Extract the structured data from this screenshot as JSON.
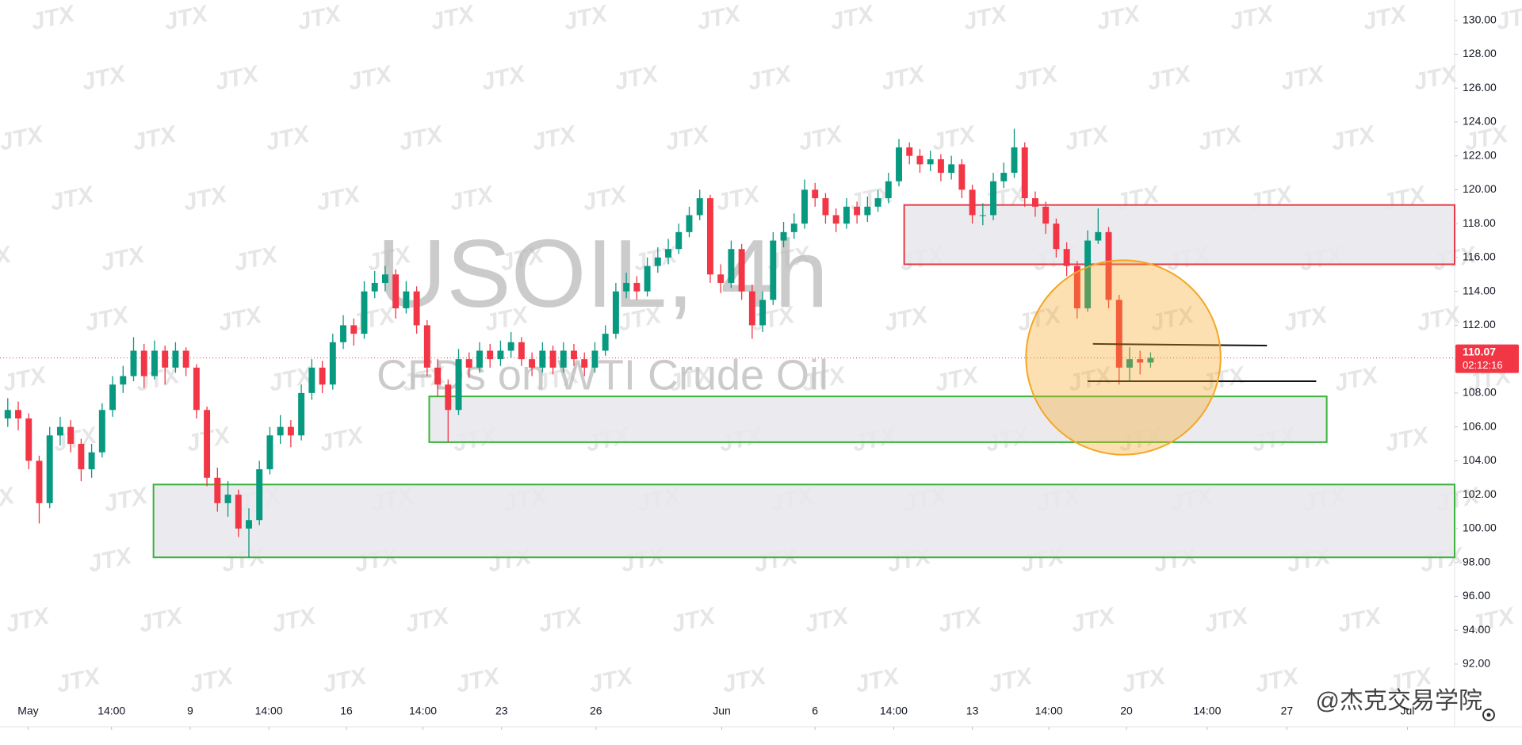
{
  "chart_data": {
    "type": "candlestick",
    "title": "USOIL, 4h",
    "subtitle": "CFDs on WTI Crude Oil",
    "watermark": "JTX",
    "credit": "@杰克交易学院",
    "last_price": {
      "value": 110.07,
      "label": "110.07"
    },
    "countdown": "02:12:16",
    "up_color": "#089981",
    "down_color": "#f23645",
    "grid": false,
    "ylim": [
      88.3,
      131.2
    ],
    "yticks": [
      {
        "value": 92,
        "label": "92.00"
      },
      {
        "value": 94,
        "label": "94.00"
      },
      {
        "value": 96,
        "label": "96.00"
      },
      {
        "value": 98,
        "label": "98.00"
      },
      {
        "value": 100,
        "label": "100.00"
      },
      {
        "value": 102,
        "label": "102.00"
      },
      {
        "value": 104,
        "label": "104.00"
      },
      {
        "value": 106,
        "label": "106.00"
      },
      {
        "value": 108,
        "label": "108.00"
      },
      {
        "value": 110,
        "label": "110.00"
      },
      {
        "value": 112,
        "label": "112.00"
      },
      {
        "value": 114,
        "label": "114.00"
      },
      {
        "value": 116,
        "label": "116.00"
      },
      {
        "value": 118,
        "label": "118.00"
      },
      {
        "value": 120,
        "label": "120.00"
      },
      {
        "value": 122,
        "label": "122.00"
      },
      {
        "value": 124,
        "label": "124.00"
      },
      {
        "value": 126,
        "label": "126.00"
      },
      {
        "value": 128,
        "label": "128.00"
      },
      {
        "value": 130,
        "label": "130.00"
      }
    ],
    "xlim": [
      -0.74,
      138
    ],
    "xticks": [
      {
        "value": 1.94,
        "label": "May"
      },
      {
        "value": 9.9,
        "label": "14:00"
      },
      {
        "value": 17.4,
        "label": "9"
      },
      {
        "value": 24.9,
        "label": "14:00"
      },
      {
        "value": 32.3,
        "label": "16"
      },
      {
        "value": 39.6,
        "label": "14:00"
      },
      {
        "value": 47.1,
        "label": "23"
      },
      {
        "value": 56.1,
        "label": "26"
      },
      {
        "value": 68.1,
        "label": "Jun"
      },
      {
        "value": 77,
        "label": "6"
      },
      {
        "value": 84.5,
        "label": "14:00"
      },
      {
        "value": 92,
        "label": "13"
      },
      {
        "value": 99.3,
        "label": "14:00"
      },
      {
        "value": 106.7,
        "label": "20"
      },
      {
        "value": 114.4,
        "label": "14:00"
      },
      {
        "value": 122,
        "label": "27"
      },
      {
        "value": 133.5,
        "label": "Jul"
      }
    ],
    "ohlc": [
      [
        106.5,
        107.7,
        106,
        107
      ],
      [
        107,
        107.5,
        105.8,
        106.5
      ],
      [
        106.5,
        106.8,
        103.5,
        104
      ],
      [
        104,
        104.3,
        100.3,
        101.5
      ],
      [
        101.5,
        106,
        101.2,
        105.5
      ],
      [
        105.5,
        106.6,
        104.9,
        106
      ],
      [
        106,
        106.4,
        104.5,
        105
      ],
      [
        105,
        105.3,
        102.8,
        103.5
      ],
      [
        103.5,
        105,
        103,
        104.5
      ],
      [
        104.5,
        107.4,
        104.2,
        107
      ],
      [
        107,
        109,
        106.6,
        108.5
      ],
      [
        108.5,
        109.6,
        108,
        109
      ],
      [
        109,
        111.3,
        108.7,
        110.5
      ],
      [
        110.5,
        110.9,
        108.3,
        109
      ],
      [
        109,
        111.1,
        108.8,
        110.5
      ],
      [
        110.5,
        110.8,
        108.5,
        109.5
      ],
      [
        109.5,
        111,
        109.2,
        110.5
      ],
      [
        110.5,
        110.7,
        109,
        109.5
      ],
      [
        109.5,
        109.7,
        106.5,
        107
      ],
      [
        107,
        107.2,
        102.5,
        103
      ],
      [
        103,
        103.6,
        101,
        101.5
      ],
      [
        101.5,
        102.8,
        100.7,
        102
      ],
      [
        102,
        102.3,
        99.5,
        100
      ],
      [
        100,
        101.2,
        98.3,
        100.5
      ],
      [
        100.5,
        104,
        100.2,
        103.5
      ],
      [
        103.5,
        106,
        103.2,
        105.5
      ],
      [
        105.5,
        106.7,
        105,
        106
      ],
      [
        106,
        106.4,
        104.8,
        105.5
      ],
      [
        105.5,
        108.5,
        105.2,
        108
      ],
      [
        108,
        110,
        107.6,
        109.5
      ],
      [
        109.5,
        109.9,
        108,
        108.5
      ],
      [
        108.5,
        111.5,
        108.2,
        111
      ],
      [
        111,
        112.6,
        110.6,
        112
      ],
      [
        112,
        112.4,
        110.8,
        111.5
      ],
      [
        111.5,
        114.6,
        111.2,
        114
      ],
      [
        114,
        115.2,
        113.6,
        114.5
      ],
      [
        114.5,
        115.5,
        114,
        115
      ],
      [
        115,
        115.3,
        112.4,
        113
      ],
      [
        113,
        114.6,
        112.7,
        114
      ],
      [
        114,
        114.3,
        111.5,
        112
      ],
      [
        112,
        112.3,
        109,
        109.5
      ],
      [
        109.5,
        110,
        107.8,
        108.5
      ],
      [
        108.5,
        108.8,
        105.1,
        107
      ],
      [
        107,
        110.6,
        106.7,
        110
      ],
      [
        110,
        110.4,
        108.9,
        109.5
      ],
      [
        109.5,
        111,
        109.2,
        110.5
      ],
      [
        110.5,
        110.9,
        109.5,
        110
      ],
      [
        110,
        111.1,
        109.6,
        110.5
      ],
      [
        110.5,
        111.6,
        110.1,
        111
      ],
      [
        111,
        111.3,
        109.6,
        110
      ],
      [
        110,
        110.4,
        109,
        109.5
      ],
      [
        109.5,
        111,
        109.2,
        110.5
      ],
      [
        110.5,
        110.8,
        109.1,
        109.5
      ],
      [
        109.5,
        111,
        109.2,
        110.5
      ],
      [
        110.5,
        110.9,
        109.6,
        110
      ],
      [
        110,
        110.4,
        109,
        109.5
      ],
      [
        109.5,
        111,
        109.2,
        110.5
      ],
      [
        110.5,
        112,
        110.2,
        111.5
      ],
      [
        111.5,
        114.5,
        111.2,
        114
      ],
      [
        114,
        115.1,
        113.6,
        114.5
      ],
      [
        114.5,
        114.9,
        113.5,
        114
      ],
      [
        114,
        116,
        113.7,
        115.5
      ],
      [
        115.5,
        116.6,
        115.1,
        116
      ],
      [
        116,
        117.1,
        115.6,
        116.5
      ],
      [
        116.5,
        118,
        116.2,
        117.5
      ],
      [
        117.5,
        119,
        117.2,
        118.5
      ],
      [
        118.5,
        120,
        118.2,
        119.5
      ],
      [
        119.5,
        119.7,
        114.5,
        115
      ],
      [
        115,
        115.6,
        113.9,
        114.5
      ],
      [
        114.5,
        117,
        114.2,
        116.5
      ],
      [
        116.5,
        116.8,
        113.5,
        114
      ],
      [
        114,
        114.4,
        111.2,
        112
      ],
      [
        112,
        114,
        111.6,
        113.5
      ],
      [
        113.5,
        117.5,
        113.2,
        117
      ],
      [
        117,
        118.1,
        116.6,
        117.5
      ],
      [
        117.5,
        118.6,
        117.1,
        118
      ],
      [
        118,
        120.6,
        117.7,
        120
      ],
      [
        120,
        120.4,
        119,
        119.5
      ],
      [
        119.5,
        119.8,
        118,
        118.5
      ],
      [
        118.5,
        118.9,
        117.5,
        118
      ],
      [
        118,
        119.5,
        117.7,
        119
      ],
      [
        119,
        119.3,
        118,
        118.5
      ],
      [
        118.5,
        119.6,
        118.1,
        119
      ],
      [
        119,
        120,
        118.7,
        119.5
      ],
      [
        119.5,
        121,
        119.2,
        120.5
      ],
      [
        120.5,
        123,
        120.2,
        122.5
      ],
      [
        122.5,
        122.8,
        121.5,
        122
      ],
      [
        122,
        122.4,
        121,
        121.5
      ],
      [
        121.5,
        122.3,
        121.1,
        121.8
      ],
      [
        121.8,
        122.1,
        120.5,
        121
      ],
      [
        121,
        122,
        120.6,
        121.5
      ],
      [
        121.5,
        121.8,
        119.5,
        120
      ],
      [
        120,
        120.3,
        118,
        118.5
      ],
      [
        118.5,
        119.2,
        117.9,
        118.5
      ],
      [
        118.5,
        121,
        118.2,
        120.5
      ],
      [
        120.5,
        121.6,
        120.1,
        121
      ],
      [
        121,
        123.6,
        120.7,
        122.5
      ],
      [
        122.5,
        122.8,
        119,
        119.5
      ],
      [
        119.5,
        119.9,
        118.4,
        119
      ],
      [
        119,
        119.3,
        117.4,
        118
      ],
      [
        118,
        118.3,
        116,
        116.5
      ],
      [
        116.5,
        116.9,
        114.9,
        115.5
      ],
      [
        115.5,
        115.8,
        112.4,
        113
      ],
      [
        113,
        117.6,
        112.8,
        117
      ],
      [
        117,
        118.9,
        116.8,
        117.5
      ],
      [
        117.5,
        117.8,
        113,
        113.5
      ],
      [
        113.5,
        113.8,
        108.5,
        109.5
      ],
      [
        109.5,
        110.7,
        108.7,
        110
      ],
      [
        110,
        110.5,
        109.1,
        109.8
      ],
      [
        109.8,
        110.4,
        109.5,
        110.07
      ]
    ],
    "zones": [
      {
        "x": [
          85.5,
          138
        ],
        "y": [
          115.6,
          119.1
        ],
        "color": "#e53946"
      },
      {
        "x": [
          40.2,
          125.8
        ],
        "y": [
          105.1,
          107.8
        ],
        "color": "#3bb33b"
      },
      {
        "x": [
          13.9,
          138
        ],
        "y": [
          98.3,
          102.6
        ],
        "color": "#3bb33b"
      }
    ],
    "trend_lines": [
      {
        "x": [
          103.5,
          120.1
        ],
        "y": [
          110.9,
          110.8
        ],
        "color": "#111111"
      },
      {
        "x": [
          103,
          124.8
        ],
        "y": [
          108.7,
          108.7
        ],
        "color": "#111111"
      }
    ],
    "highlight": {
      "x": 106.4,
      "y": 110.1,
      "radius": 5.74,
      "color": "#f5a623"
    }
  }
}
